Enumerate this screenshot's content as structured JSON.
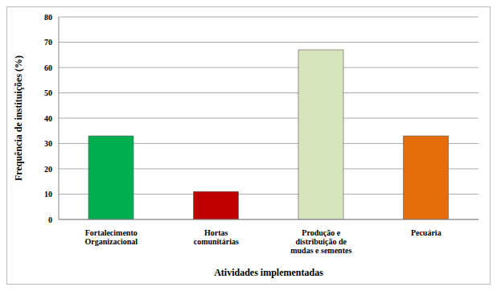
{
  "chart_data": {
    "type": "bar",
    "categories": [
      "Fortalecimento Organizacional",
      "Hortas comunitárias",
      "Produção e distribuição de mudas e sementes",
      "Pecuária"
    ],
    "values": [
      33,
      11,
      67,
      33
    ],
    "colors": [
      "#00b050",
      "#c00000",
      "#d7e4bd",
      "#e46c0a"
    ],
    "xlabel": "Atividades implementadas",
    "ylabel": "Frequência de instituições (%)",
    "ylim": [
      0,
      80
    ],
    "yticks": [
      0,
      10,
      20,
      30,
      40,
      50,
      60,
      70,
      80
    ],
    "grid": true
  }
}
